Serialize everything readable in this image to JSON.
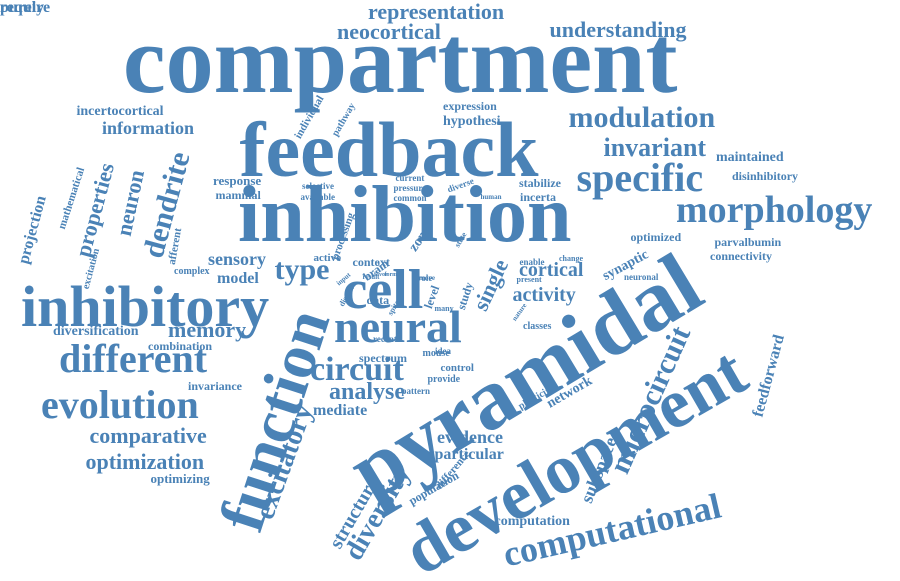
{
  "color": "#4a82b6",
  "words": [
    "compartment",
    "feedback",
    "inhibition",
    "inhibitory",
    "pyramidal",
    "development",
    "function",
    "neural",
    "cell",
    "different",
    "evolution",
    "morphology",
    "specific",
    "computational",
    "circuit",
    "modulation",
    "representation",
    "neocortical",
    "understanding",
    "invariant",
    "comparative",
    "optimization",
    "dendrite",
    "properties",
    "information",
    "incertocortical",
    "maintained",
    "disinhibitory",
    "hypothesi",
    "expression",
    "projection",
    "mathematical",
    "neuron",
    "response",
    "mammal",
    "selective",
    "available",
    "current",
    "pressure",
    "common",
    "diverse",
    "human",
    "stabilize",
    "incerta",
    "optimized",
    "parvalbumin",
    "connectivity",
    "synaptic",
    "neuronal",
    "cortical",
    "activity",
    "single",
    "study",
    "type",
    "sensory",
    "model",
    "context",
    "brain",
    "zona",
    "level",
    "data",
    "active",
    "role",
    "memory",
    "diversification",
    "combination",
    "analyse",
    "mediate",
    "invariance",
    "optimizing",
    "evidence",
    "particular",
    "excitatory",
    "structure",
    "diversity",
    "population",
    "difference",
    "spectrum",
    "mouse",
    "control",
    "provide",
    "network",
    "plasticity",
    "classes",
    "nature",
    "enable",
    "change",
    "present",
    "idea",
    "many",
    "microcircuit",
    "subspace",
    "feedforward",
    "computation",
    "afferent",
    "complex",
    "excitation",
    "recent",
    "pattern",
    "individual",
    "pathway",
    "processing",
    "input",
    "distinct",
    "result",
    "favor",
    "form",
    "spite",
    "state",
    "move",
    "require",
    "purely"
  ]
}
